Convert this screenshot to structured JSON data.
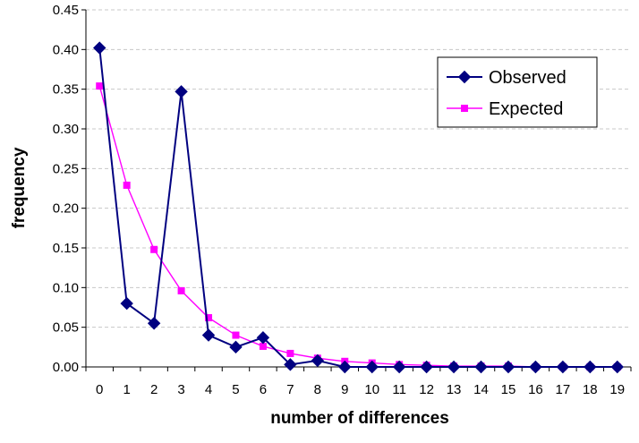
{
  "chart_data": {
    "type": "line",
    "title": "",
    "xlabel": "number of differences",
    "ylabel": "frequency",
    "categories": [
      "0",
      "1",
      "2",
      "3",
      "4",
      "5",
      "6",
      "7",
      "8",
      "9",
      "10",
      "11",
      "12",
      "13",
      "14",
      "15",
      "16",
      "17",
      "18",
      "19"
    ],
    "x": [
      0,
      1,
      2,
      3,
      4,
      5,
      6,
      7,
      8,
      9,
      10,
      11,
      12,
      13,
      14,
      15,
      16,
      17,
      18,
      19
    ],
    "ylim": [
      0,
      0.45
    ],
    "yticks": [
      "0.00",
      "0.05",
      "0.10",
      "0.15",
      "0.20",
      "0.25",
      "0.30",
      "0.35",
      "0.40",
      "0.45"
    ],
    "ytick_values": [
      0,
      0.05,
      0.1,
      0.15,
      0.2,
      0.25,
      0.3,
      0.35,
      0.4,
      0.45
    ],
    "grid": true,
    "legend_position": "top-right",
    "series": [
      {
        "name": "Observed",
        "color": "#000080",
        "marker": "diamond",
        "values": [
          0.402,
          0.08,
          0.055,
          0.347,
          0.04,
          0.025,
          0.037,
          0.003,
          0.008,
          0.0,
          0.0,
          0.0,
          0.0,
          0.0,
          0.0,
          0.0,
          0.0,
          0.0,
          0.0,
          0.0
        ]
      },
      {
        "name": "Expected",
        "color": "#ff00ff",
        "marker": "square",
        "values": [
          0.354,
          0.229,
          0.148,
          0.096,
          0.062,
          0.04,
          0.026,
          0.017,
          0.011,
          0.007,
          0.005,
          0.003,
          0.002,
          0.001,
          0.001,
          0.001,
          0.0,
          0.0,
          0.0,
          0.0
        ]
      }
    ]
  }
}
